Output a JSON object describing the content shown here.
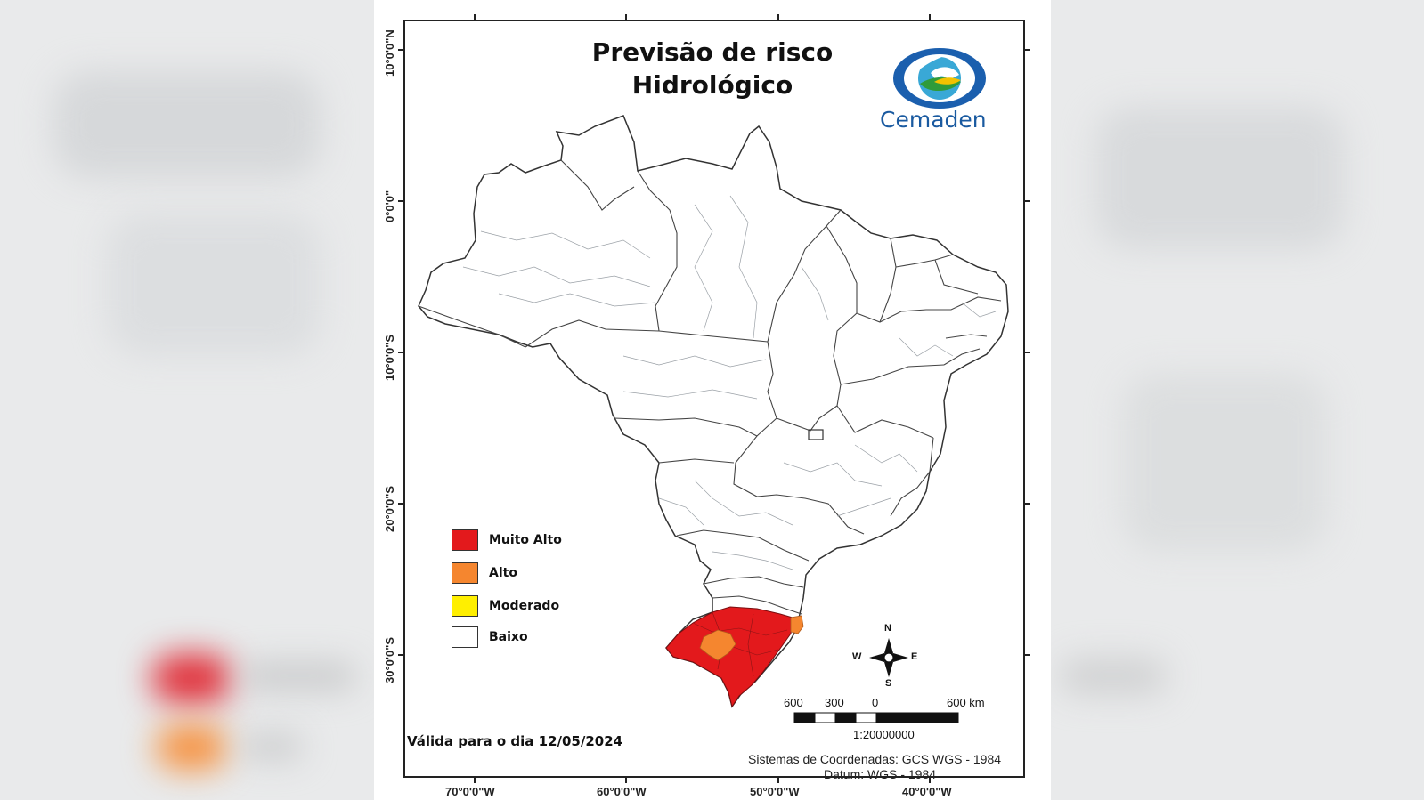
{
  "map": {
    "title_line1": "Previsão de risco",
    "title_line2": "Hidrológico",
    "logo_text": "Cemaden",
    "valid_date": "Válida para o dia 12/05/2024",
    "coord_system": "Sistemas de Coordenadas: GCS WGS - 1984",
    "datum": "Datum: WGS - 1984",
    "scale_ratio": "1:20000000",
    "scale_labels": [
      "600",
      "300",
      "0",
      "600 km"
    ],
    "compass": {
      "n": "N",
      "s": "S",
      "e": "E",
      "w": "W"
    },
    "lon_ticks": [
      "70°0'0\"W",
      "60°0'0\"W",
      "50°0'0\"W",
      "40°0'0\"W"
    ],
    "lat_ticks": [
      "10°0'0\"N",
      "0°0'0\"",
      "10°0'0\"S",
      "20°0'0\"S",
      "30°0'0\"S"
    ]
  },
  "legend": [
    {
      "label": "Muito Alto",
      "color": "#e3191c"
    },
    {
      "label": "Alto",
      "color": "#f5862f"
    },
    {
      "label": "Moderado",
      "color": "#ffef00"
    },
    {
      "label": "Baixo",
      "color": "#ffffff"
    }
  ],
  "risk_areas": [
    {
      "region": "Rio Grande do Sul",
      "level": "Muito Alto"
    },
    {
      "region": "Rio Grande do Sul (centro)",
      "level": "Alto"
    },
    {
      "region": "Santa Catarina (litoral sul)",
      "level": "Alto"
    }
  ]
}
